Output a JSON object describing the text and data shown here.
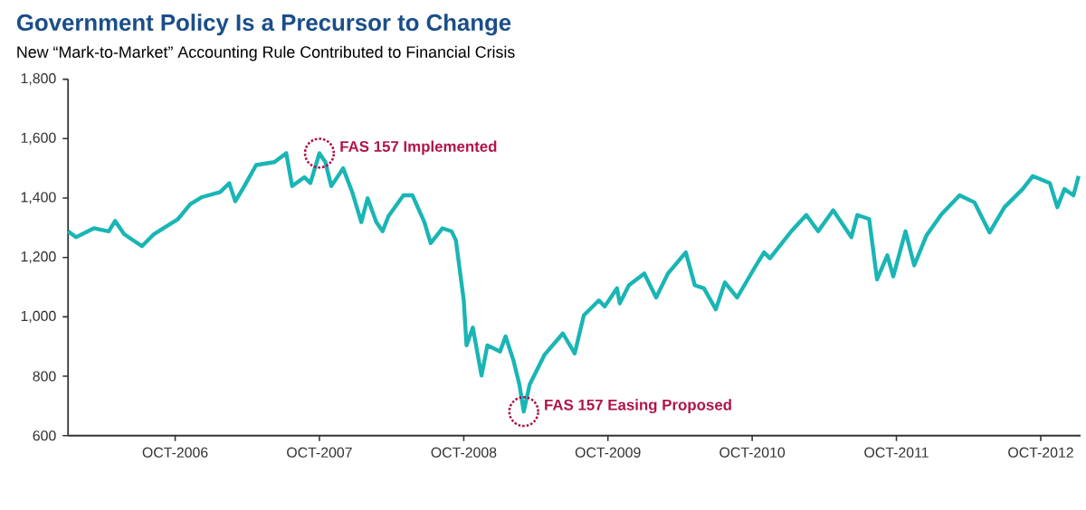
{
  "chart_data": {
    "type": "line",
    "title": "Government Policy Is a Precursor to Change",
    "subtitle": "New “Mark-to-Market” Accounting Rule Contributed to Financial Crisis",
    "x": [
      "2006-01-03",
      "2006-01-23",
      "2006-03-09",
      "2006-04-16",
      "2006-05-02",
      "2006-05-25",
      "2006-07-09",
      "2006-08-08",
      "2006-10-08",
      "2006-11-08",
      "2006-12-08",
      "2007-01-23",
      "2007-02-15",
      "2007-03-02",
      "2007-03-25",
      "2007-04-24",
      "2007-06-09",
      "2007-07-09",
      "2007-07-24",
      "2007-08-24",
      "2007-09-08",
      "2007-10-01",
      "2007-10-16",
      "2007-10-31",
      "2007-11-30",
      "2007-12-23",
      "2008-01-15",
      "2008-01-31",
      "2008-02-22",
      "2008-03-09",
      "2008-03-24",
      "2008-05-01",
      "2008-05-24",
      "2008-06-23",
      "2008-07-09",
      "2008-08-08",
      "2008-08-31",
      "2008-09-11",
      "2008-10-01",
      "2008-10-08",
      "2008-10-24",
      "2008-11-15",
      "2008-11-30",
      "2009-01-01",
      "2009-01-15",
      "2009-02-04",
      "2009-02-19",
      "2009-03-02",
      "2009-03-17",
      "2009-04-24",
      "2009-06-09",
      "2009-07-09",
      "2009-08-01",
      "2009-09-08",
      "2009-09-23",
      "2009-10-24",
      "2009-10-31",
      "2009-11-23",
      "2010-01-01",
      "2010-01-31",
      "2010-03-02",
      "2010-04-16",
      "2010-05-09",
      "2010-06-01",
      "2010-07-01",
      "2010-07-24",
      "2010-08-24",
      "2010-10-08",
      "2010-10-31",
      "2010-11-15",
      "2011-01-08",
      "2011-02-15",
      "2011-03-17",
      "2011-04-24",
      "2011-06-09",
      "2011-06-24",
      "2011-07-24",
      "2011-08-13",
      "2011-09-08",
      "2011-09-23",
      "2011-10-24",
      "2011-11-15",
      "2011-12-16",
      "2012-01-23",
      "2012-03-09",
      "2012-04-16",
      "2012-05-24",
      "2012-07-01",
      "2012-08-16",
      "2012-09-11",
      "2012-10-24",
      "2012-11-12",
      "2012-11-30",
      "2012-12-23",
      "2013-01-05"
    ],
    "series": [
      {
        "color": "#1ab5b5",
        "values": [
          1288,
          1268,
          1298,
          1288,
          1323,
          1278,
          1238,
          1278,
          1329,
          1379,
          1403,
          1420,
          1450,
          1389,
          1440,
          1511,
          1521,
          1551,
          1440,
          1470,
          1450,
          1551,
          1521,
          1440,
          1500,
          1420,
          1319,
          1399,
          1319,
          1288,
          1339,
          1409,
          1409,
          1319,
          1248,
          1298,
          1288,
          1258,
          1055,
          904,
          964,
          802,
          904,
          883,
          934,
          853,
          772,
          681,
          772,
          873,
          944,
          877,
          1005,
          1055,
          1035,
          1096,
          1045,
          1106,
          1146,
          1065,
          1146,
          1217,
          1106,
          1096,
          1025,
          1116,
          1065,
          1167,
          1217,
          1197,
          1288,
          1343,
          1288,
          1359,
          1268,
          1343,
          1329,
          1126,
          1207,
          1136,
          1288,
          1173,
          1274,
          1345,
          1409,
          1385,
          1284,
          1369,
          1430,
          1474,
          1450,
          1369,
          1430,
          1409,
          1474
        ]
      }
    ],
    "xlim": [
      "2006-01-03",
      "2013-01-10"
    ],
    "xticks": [
      {
        "value": "2006-10-01",
        "label": "OCT-2006"
      },
      {
        "value": "2007-10-01",
        "label": "OCT-2007"
      },
      {
        "value": "2008-10-01",
        "label": "OCT-2008"
      },
      {
        "value": "2009-10-01",
        "label": "OCT-2009"
      },
      {
        "value": "2010-10-01",
        "label": "OCT-2010"
      },
      {
        "value": "2011-10-01",
        "label": "OCT-2011"
      },
      {
        "value": "2012-10-01",
        "label": "OCT-2012"
      }
    ],
    "ylim": [
      600,
      1800
    ],
    "yticks": [
      {
        "value": 600,
        "label": "600"
      },
      {
        "value": 800,
        "label": "800"
      },
      {
        "value": 1000,
        "label": "1,000"
      },
      {
        "value": 1200,
        "label": "1,200"
      },
      {
        "value": 1400,
        "label": "1,400"
      },
      {
        "value": 1600,
        "label": "1,600"
      },
      {
        "value": 1800,
        "label": "1,800"
      }
    ],
    "annotations": [
      {
        "text": "FAS 157 Implemented",
        "x": "2007-10-01",
        "y": 1551
      },
      {
        "text": "FAS 157 Easing Proposed",
        "x": "2009-03-02",
        "y": 681
      }
    ],
    "grid": false,
    "marker": "none"
  }
}
